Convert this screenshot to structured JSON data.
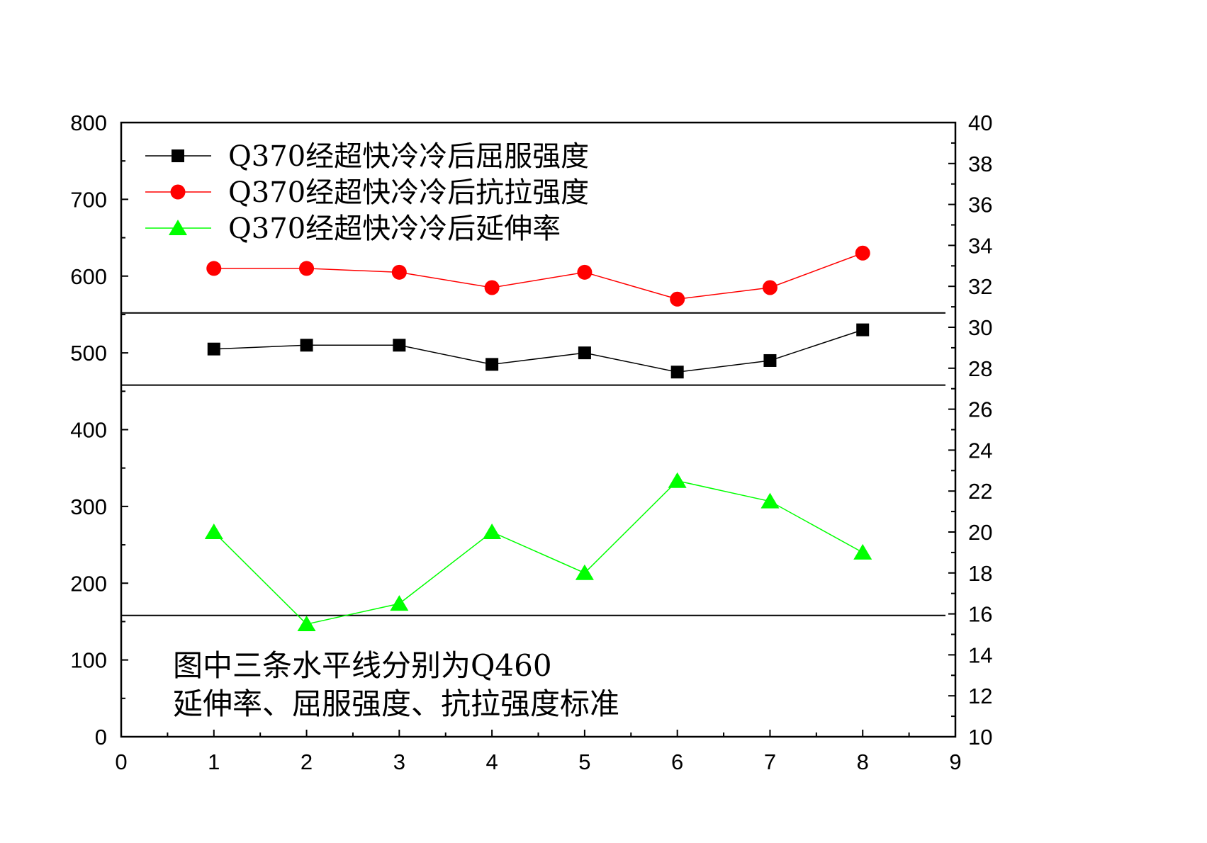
{
  "chart_data": {
    "type": "line",
    "x": [
      1,
      2,
      3,
      4,
      5,
      6,
      7,
      8
    ],
    "xlim": [
      0,
      9
    ],
    "x_ticks": [
      "0",
      "1",
      "2",
      "3",
      "4",
      "5",
      "6",
      "7",
      "8",
      "9"
    ],
    "ylim_left": [
      0,
      800
    ],
    "y_left_ticks": [
      "0",
      "100",
      "200",
      "300",
      "400",
      "500",
      "600",
      "700",
      "800"
    ],
    "ylim_right": [
      10,
      40
    ],
    "y_right_ticks": [
      "10",
      "12",
      "14",
      "16",
      "18",
      "20",
      "22",
      "24",
      "26",
      "28",
      "30",
      "32",
      "34",
      "36",
      "38",
      "40"
    ],
    "grid": false,
    "legend_position": "top-left",
    "series": [
      {
        "name": "Q370经超快冷冷后屈服强度",
        "axis": "left",
        "color": "#000000",
        "marker": "square",
        "values": [
          505,
          510,
          510,
          485,
          500,
          475,
          490,
          530
        ]
      },
      {
        "name": "Q370经超快冷冷后抗拉强度",
        "axis": "left",
        "color": "#ff0000",
        "marker": "circle",
        "values": [
          610,
          610,
          605,
          585,
          605,
          570,
          585,
          630
        ]
      },
      {
        "name": "Q370经超快冷冷后延伸率",
        "axis": "right",
        "color": "#00ff00",
        "marker": "triangle",
        "values": [
          20,
          15.5,
          16.5,
          20,
          18,
          22.5,
          21.5,
          19
        ]
      }
    ],
    "reference_lines": [
      {
        "axis": "left",
        "value": 552
      },
      {
        "axis": "left",
        "value": 458
      },
      {
        "axis": "left",
        "value": 158
      }
    ],
    "annotation_lines": [
      "图中三条水平线分别为Q460",
      "延伸率、屈服强度、抗拉强度标准"
    ]
  }
}
